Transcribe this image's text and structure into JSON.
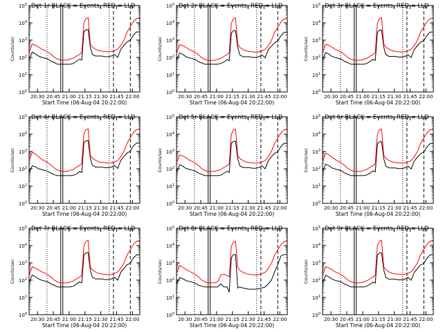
{
  "chart_data": {
    "type": "line",
    "layout": "3x3 grid",
    "y_scale": "log",
    "ylim": [
      1,
      100000
    ],
    "y_ticks": [
      1,
      10,
      100,
      1000,
      10000,
      100000
    ],
    "y_tick_labels": [
      "10^0",
      "10^1",
      "10^2",
      "10^3",
      "10^4",
      "10^5"
    ],
    "ylabel": "Counts/sec",
    "xlabel": "Start Time (06-Aug-04 20:22:00)",
    "x_unit": "time of day (minutes)",
    "xlim": [
      "20:22",
      "22:07"
    ],
    "x_tick_labels": [
      "20:30",
      "20:45",
      "21:00",
      "21:15",
      "21:30",
      "21:45",
      "22:00"
    ],
    "legend_note": "BLACK = Events, RED = LLD",
    "vertical_markers": [
      {
        "time": "20:39",
        "style": "dotted"
      },
      {
        "time": "20:53",
        "style": "solid double"
      },
      {
        "time": "21:38",
        "style": "dotted"
      },
      {
        "time": "21:42",
        "style": "dashed"
      },
      {
        "time": "21:58",
        "style": "dashed"
      }
    ],
    "colors": {
      "events": "#000000",
      "lld": "#ff0000",
      "axes": "#000000",
      "background": "#ffffff"
    },
    "time_points": [
      "20:22",
      "20:25",
      "20:28",
      "20:31",
      "20:34",
      "20:37",
      "20:40",
      "20:43",
      "20:46",
      "20:49",
      "20:52",
      "20:55",
      "20:58",
      "21:01",
      "21:04",
      "21:07",
      "21:10",
      "21:12",
      "21:14",
      "21:16",
      "21:18",
      "21:20",
      "21:22",
      "21:25",
      "21:28",
      "21:31",
      "21:34",
      "21:37",
      "21:40",
      "21:43",
      "21:46",
      "21:49",
      "21:52",
      "21:55",
      "21:58",
      "22:01",
      "22:04",
      "22:07"
    ],
    "panels": [
      {
        "title": "Det 1r BLACK = Events, RED = LLD",
        "series": [
          {
            "name": "Events",
            "values": [
              80,
              200,
              160,
              120,
              100,
              90,
              80,
              60,
              50,
              40,
              40,
              40,
              40,
              40,
              45,
              60,
              80,
              70,
              3000,
              4000,
              4000,
              400,
              150,
              120,
              120,
              120,
              110,
              110,
              120,
              150,
              100,
              300,
              500,
              800,
              1000,
              2000,
              3000,
              3000
            ]
          },
          {
            "name": "LLD",
            "values": [
              200,
              600,
              500,
              400,
              300,
              250,
              200,
              150,
              100,
              80,
              70,
              70,
              70,
              80,
              90,
              120,
              150,
              200,
              10000,
              18000,
              20000,
              600,
              400,
              300,
              250,
              230,
              220,
              210,
              220,
              250,
              300,
              500,
              1000,
              3000,
              6000,
              12000,
              18000,
              18000
            ]
          }
        ]
      },
      {
        "title": "Det 2r BLACK = Events, RED = LLD",
        "series": [
          {
            "name": "Events",
            "values": [
              70,
              180,
              150,
              110,
              95,
              85,
              75,
              55,
              48,
              40,
              40,
              40,
              40,
              40,
              45,
              55,
              75,
              65,
              2500,
              3500,
              3500,
              380,
              140,
              110,
              110,
              110,
              100,
              100,
              110,
              140,
              95,
              280,
              450,
              700,
              900,
              1800,
              2800,
              2800
            ]
          },
          {
            "name": "LLD",
            "values": [
              180,
              550,
              480,
              380,
              290,
              240,
              190,
              140,
              95,
              75,
              68,
              68,
              68,
              78,
              88,
              115,
              145,
              190,
              9500,
              17000,
              19000,
              580,
              380,
              290,
              240,
              220,
              210,
              200,
              210,
              240,
              290,
              480,
              950,
              2800,
              5500,
              11000,
              17000,
              17000
            ]
          }
        ]
      },
      {
        "title": "Det 3r BLACK = Events, RED = LLD",
        "series": [
          {
            "name": "Events",
            "values": [
              75,
              190,
              155,
              115,
              98,
              88,
              78,
              58,
              49,
              40,
              40,
              40,
              40,
              40,
              45,
              58,
              78,
              68,
              2800,
              3800,
              3800,
              390,
              145,
              115,
              115,
              115,
              105,
              105,
              115,
              145,
              98,
              290,
              480,
              760,
              950,
              1900,
              2900,
              2900
            ]
          },
          {
            "name": "LLD",
            "values": [
              190,
              580,
              490,
              390,
              295,
              245,
              195,
              145,
              98,
              78,
              69,
              69,
              69,
              79,
              89,
              118,
              148,
              195,
              9800,
              17500,
              19500,
              590,
              390,
              295,
              245,
              225,
              215,
              205,
              215,
              245,
              295,
              490,
              980,
              2900,
              5800,
              11500,
              17500,
              17500
            ]
          }
        ]
      },
      {
        "title": "Det 4r BLACK = Events, RED = LLD",
        "series": [
          {
            "name": "Events",
            "values": [
              60,
              150,
              130,
              100,
              90,
              80,
              70,
              55,
              45,
              40,
              40,
              40,
              40,
              40,
              42,
              50,
              70,
              60,
              3200,
              4200,
              4200,
              420,
              160,
              125,
              125,
              125,
              115,
              115,
              125,
              155,
              105,
              310,
              520,
              820,
              1050,
              2100,
              3100,
              3100
            ]
          },
          {
            "name": "LLD",
            "values": [
              300,
              900,
              700,
              500,
              350,
              280,
              220,
              160,
              110,
              85,
              72,
              72,
              72,
              82,
              92,
              125,
              155,
              205,
              10500,
              18500,
              20500,
              620,
              410,
              310,
              255,
              235,
              225,
              215,
              225,
              255,
              305,
              510,
              1050,
              3100,
              6200,
              12500,
              18500,
              18500
            ]
          }
        ]
      },
      {
        "title": "Det 5r BLACK = Events, RED = LLD",
        "series": [
          {
            "name": "Events",
            "values": [
              65,
              170,
              140,
              105,
              92,
              82,
              72,
              56,
              47,
              40,
              40,
              40,
              40,
              40,
              43,
              55,
              72,
              62,
              2900,
              3900,
              3900,
              395,
              148,
              118,
              118,
              118,
              108,
              108,
              118,
              148,
              99,
              295,
              490,
              780,
              970,
              1950,
              2950,
              2950
            ]
          },
          {
            "name": "LLD",
            "values": [
              220,
              650,
              560,
              430,
              320,
              260,
              205,
              150,
              100,
              80,
              70,
              70,
              70,
              80,
              90,
              120,
              150,
              198,
              9900,
              17800,
              19800,
              595,
              395,
              298,
              248,
              228,
              218,
              208,
              218,
              248,
              298,
              495,
              990,
              2950,
              5900,
              11800,
              17800,
              17800
            ]
          }
        ]
      },
      {
        "title": "Det 6r BLACK = Events, RED = LLD",
        "series": [
          {
            "name": "Events",
            "values": [
              72,
              185,
              152,
              112,
              96,
              86,
              76,
              57,
              48,
              40,
              40,
              40,
              40,
              40,
              44,
              56,
              76,
              66,
              2700,
              3700,
              3700,
              385,
              143,
              113,
              113,
              113,
              103,
              103,
              113,
              143,
              97,
              285,
              470,
              740,
              930,
              1850,
              2850,
              2850
            ]
          },
          {
            "name": "LLD",
            "values": [
              260,
              800,
              640,
              470,
              340,
              270,
              210,
              155,
              105,
              82,
              71,
              71,
              71,
              81,
              91,
              122,
              152,
              200,
              10000,
              18000,
              20000,
              600,
              400,
              300,
              250,
              230,
              220,
              210,
              220,
              250,
              300,
              500,
              1000,
              3000,
              6000,
              12000,
              18000,
              18000
            ]
          }
        ]
      },
      {
        "title": "Det 7r BLACK = Events, RED = LLD",
        "series": [
          {
            "name": "Events",
            "values": [
              78,
              195,
              158,
              118,
              99,
              89,
              79,
              59,
              50,
              40,
              40,
              40,
              40,
              40,
              45,
              59,
              79,
              69,
              2850,
              3850,
              3850,
              392,
              147,
              117,
              117,
              117,
              107,
              107,
              117,
              147,
              99,
              292,
              485,
              770,
              960,
              1920,
              2920,
              2920
            ]
          },
          {
            "name": "LLD",
            "values": [
              195,
              590,
              495,
              395,
              298,
              248,
              198,
              148,
              99,
              79,
              69,
              69,
              69,
              79,
              89,
              119,
              149,
              196,
              9850,
              17700,
              19700,
              592,
              392,
              296,
              246,
              226,
              216,
              206,
              216,
              246,
              296,
              492,
              985,
              2920,
              5850,
              11700,
              17700,
              17700
            ]
          }
        ]
      },
      {
        "title": "Det 8r BLACK = Events, RED = LLD",
        "series": [
          {
            "name": "Events",
            "values": [
              60,
              140,
              120,
              95,
              85,
              75,
              65,
              50,
              45,
              40,
              40,
              40,
              40,
              40,
              60,
              40,
              40,
              20,
              2000,
              3000,
              3000,
              35,
              40,
              35,
              32,
              30,
              30,
              30,
              32,
              35,
              40,
              60,
              100,
              300,
              800,
              2500,
              3000,
              3000
            ]
          },
          {
            "name": "LLD",
            "values": [
              250,
              700,
              550,
              420,
              330,
              260,
              205,
              150,
              100,
              80,
              70,
              70,
              70,
              80,
              200,
              220,
              180,
              160,
              9000,
              16000,
              18000,
              550,
              370,
              280,
              235,
              215,
              205,
              195,
              205,
              235,
              280,
              470,
              940,
              2800,
              5600,
              11200,
              16800,
              16800
            ]
          }
        ]
      },
      {
        "title": "Det 9r BLACK = Events, RED = LLD",
        "series": [
          {
            "name": "Events",
            "values": [
              74,
              188,
              154,
              114,
              97,
              87,
              77,
              58,
              49,
              40,
              40,
              40,
              40,
              40,
              45,
              57,
              77,
              67,
              2750,
              3750,
              3750,
              388,
              144,
              114,
              114,
              114,
              104,
              104,
              114,
              144,
              98,
              288,
              475,
              750,
              940,
              1880,
              2880,
              2880
            ]
          },
          {
            "name": "LLD",
            "values": [
              200,
              600,
              500,
              400,
              300,
              250,
              200,
              150,
              100,
              80,
              70,
              70,
              70,
              80,
              90,
              120,
              150,
              200,
              10000,
              18000,
              20000,
              600,
              400,
              300,
              250,
              230,
              220,
              210,
              220,
              250,
              300,
              500,
              1000,
              3000,
              6000,
              12000,
              18000,
              18000
            ]
          }
        ]
      }
    ]
  }
}
